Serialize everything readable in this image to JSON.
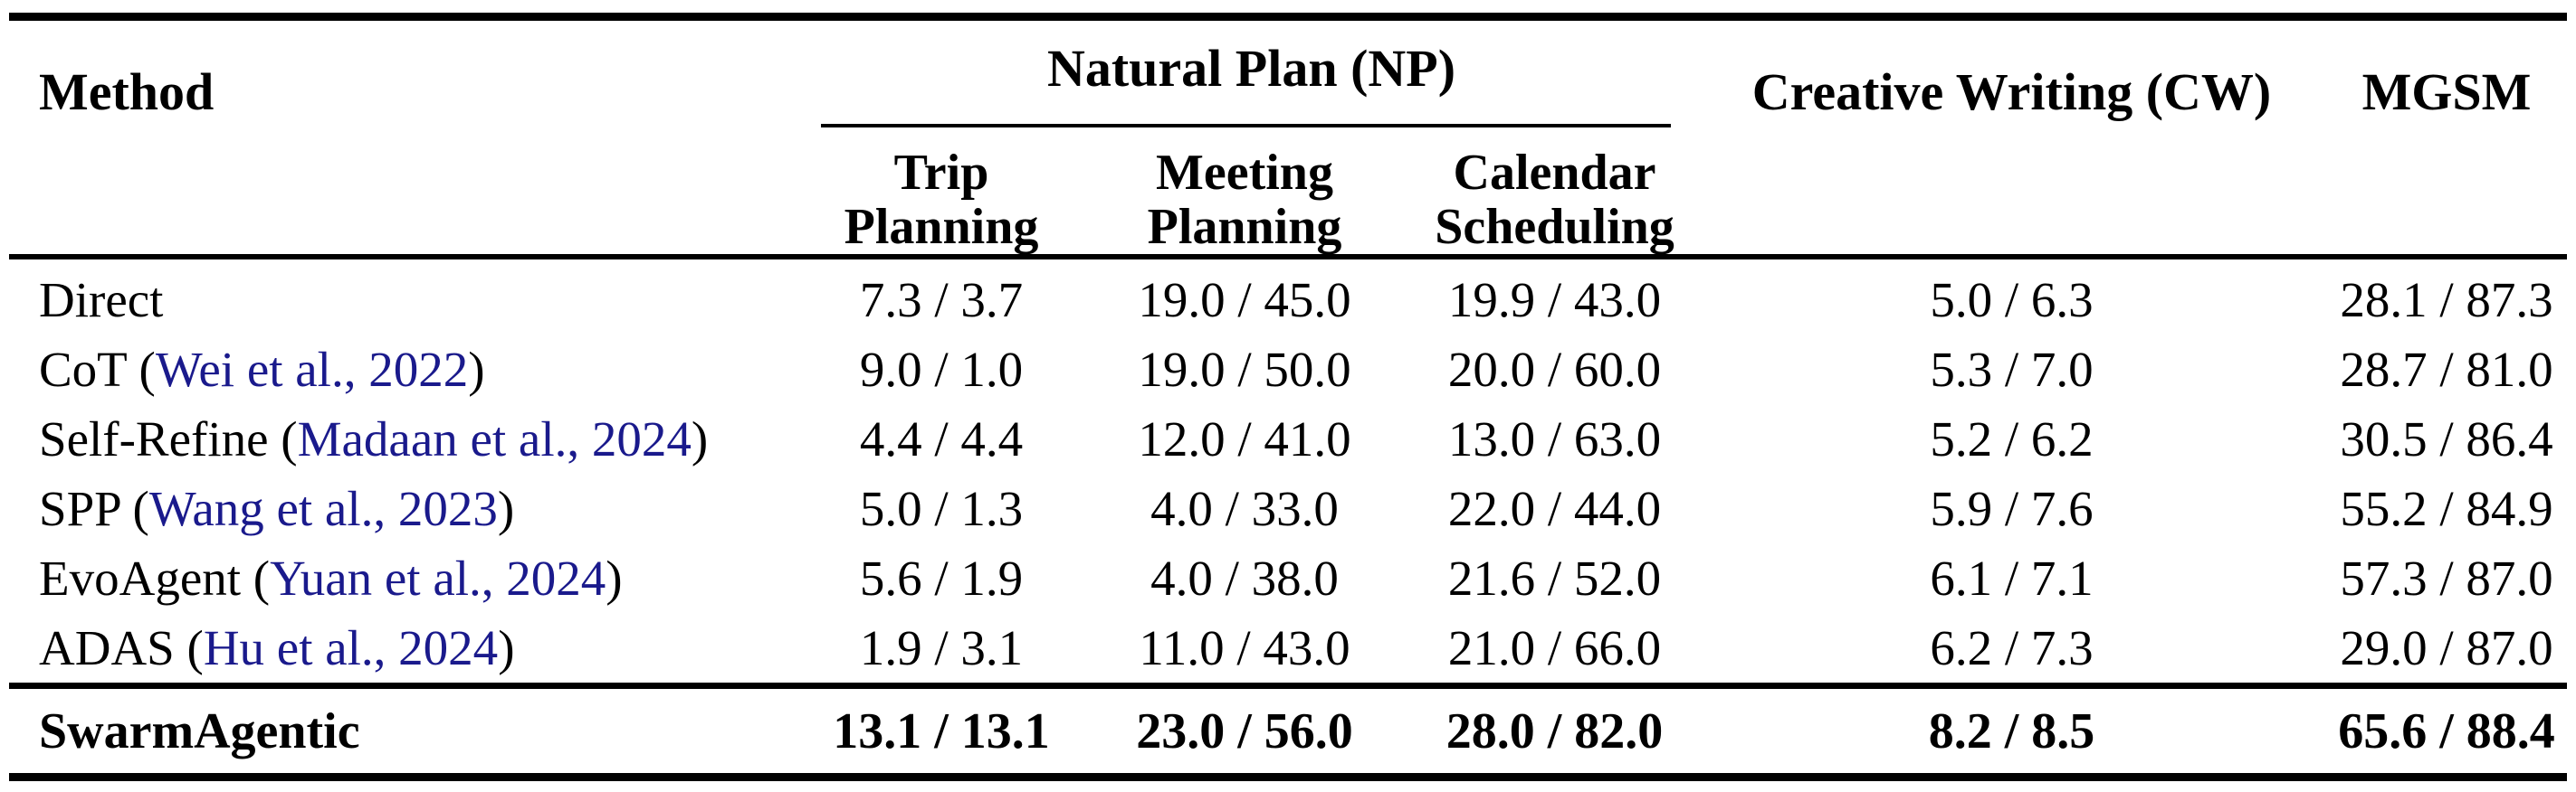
{
  "table": {
    "header": {
      "method": "Method",
      "np_group": "Natural Plan (NP)",
      "subcolumns": [
        {
          "line1": "Trip",
          "line2": "Planning"
        },
        {
          "line1": "Meeting",
          "line2": "Planning"
        },
        {
          "line1": "Calendar",
          "line2": "Scheduling"
        }
      ],
      "cw": "Creative Writing (CW)",
      "mgsm": "MGSM"
    },
    "rows": [
      {
        "name": "Direct",
        "cite_open": "",
        "citation": "",
        "cite_close": "",
        "cells": [
          "7.3 / 3.7",
          "19.0 / 45.0",
          "19.9 / 43.0",
          "5.0 / 6.3",
          "28.1 / 87.3"
        ]
      },
      {
        "name": "CoT",
        "cite_open": " (",
        "citation": "Wei et al., 2022",
        "cite_close": ")",
        "cells": [
          "9.0 / 1.0",
          "19.0 / 50.0",
          "20.0 / 60.0",
          "5.3 / 7.0",
          "28.7 / 81.0"
        ]
      },
      {
        "name": "Self-Refine",
        "cite_open": " (",
        "citation": "Madaan et al., 2024",
        "cite_close": ")",
        "cells": [
          "4.4 / 4.4",
          "12.0 / 41.0",
          "13.0 / 63.0",
          "5.2 / 6.2",
          "30.5 / 86.4"
        ]
      },
      {
        "name": "SPP",
        "cite_open": " (",
        "citation": "Wang et al., 2023",
        "cite_close": ")",
        "cells": [
          "5.0 / 1.3",
          "4.0 / 33.0",
          "22.0 / 44.0",
          "5.9 / 7.6",
          "55.2 / 84.9"
        ]
      },
      {
        "name": "EvoAgent",
        "cite_open": " (",
        "citation": "Yuan et al., 2024",
        "cite_close": ")",
        "cells": [
          "5.6 / 1.9",
          "4.0 / 38.0",
          "21.6 / 52.0",
          "6.1 / 7.1",
          "57.3 / 87.0"
        ]
      },
      {
        "name": "ADAS",
        "cite_open": " (",
        "citation": "Hu et al., 2024",
        "cite_close": ")",
        "cells": [
          "1.9 / 3.1",
          "11.0 / 43.0",
          "21.0 / 66.0",
          "6.2 / 7.3",
          "29.0 / 87.0"
        ]
      }
    ],
    "highlight": {
      "name": "SwarmAgentic",
      "cells": [
        "13.1 / 13.1",
        "23.0 / 56.0",
        "28.0 / 82.0",
        "8.2 / 8.5",
        "65.6 / 88.4"
      ]
    }
  },
  "colors": {
    "citation_color": "#1a1a8c",
    "text_color": "#000000",
    "rule_color": "#000000",
    "background_color": "#ffffff"
  }
}
